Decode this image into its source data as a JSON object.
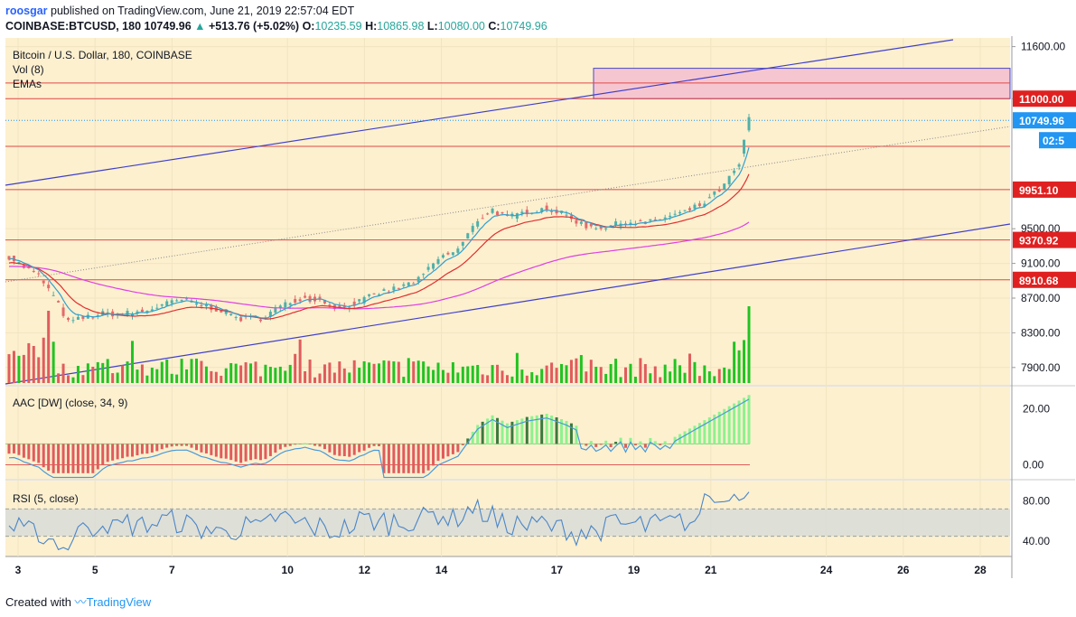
{
  "header": {
    "author": "roosgar",
    "published_text": "published on TradingView.com, June 21, 2019 22:57:04 EDT",
    "symbol_line": "COINBASE:BTCUSD, 180",
    "last_price": "10749.96",
    "change": "+513.76 (+5.02%)",
    "ohlc": [
      {
        "label": "O:",
        "value": "10235.59"
      },
      {
        "label": "H:",
        "value": "10865.98"
      },
      {
        "label": "L:",
        "value": "10080.00"
      },
      {
        "label": "C:",
        "value": "10749.96"
      }
    ]
  },
  "legend": {
    "title": "Bitcoin / U.S. Dollar, 180, COINBASE",
    "vol": "Vol (8)",
    "emas": "EMAs",
    "aac": "AAC [DW] (close, 34, 9)",
    "rsi": "RSI (5, close)"
  },
  "colors": {
    "background": "#fdf0cf",
    "up": "#4fb0a9",
    "down": "#e36b6b",
    "vol_up": "#22c322",
    "vol_down": "#e05c5c",
    "trendline": "#3f3fcc",
    "support_line": "#e04848",
    "ema_fast": "#30a0d0",
    "ema_slow": "#e03030",
    "ema_long": "#e040e0",
    "price_label": "#2196f3",
    "level_label": "#e02020",
    "aac_pos_light": "#8ef28e",
    "aac_pos_dark": "#3a7a3a",
    "aac_neg": "#e05c5c",
    "rsi_line": "#4a86c8",
    "rsi_band": "#d8dcd8"
  },
  "chart_data": {
    "type": "candlestick",
    "x_tick_labels": [
      "3",
      "5",
      "7",
      "10",
      "12",
      "14",
      "17",
      "19",
      "21",
      "24",
      "26",
      "28"
    ],
    "price_axis": {
      "range": [
        7700,
        11700
      ],
      "tick_labels": [
        "11600.00",
        "11000.00",
        "9500.00",
        "9100.00",
        "8700.00",
        "8300.00",
        "7900.00"
      ],
      "ticks": [
        11600,
        11000,
        9500,
        9100,
        8700,
        8300,
        7900
      ]
    },
    "horizontal_levels": [
      {
        "value": 11000.0,
        "label": "11000.00"
      },
      {
        "value": 9951.1,
        "label": "9951.10"
      },
      {
        "value": 9370.92,
        "label": "9370.92"
      },
      {
        "value": 8910.68,
        "label": "8910.68"
      }
    ],
    "unlabeled_levels": [
      11180,
      10450
    ],
    "last_price_label": {
      "value": 10749.96,
      "label": "10749.96"
    },
    "countdown_label": "02:5",
    "resistance_zone": {
      "from": 11000,
      "to": 11350
    },
    "aac_axis": {
      "tick_labels": [
        "20.00",
        "0.00"
      ],
      "ticks": [
        20,
        0
      ],
      "range": [
        -5,
        28
      ]
    },
    "rsi_axis": {
      "tick_labels": [
        "80.00",
        "40.00"
      ],
      "ticks": [
        80,
        40
      ],
      "range": [
        25,
        100
      ],
      "band": [
        45,
        72
      ]
    }
  }
}
